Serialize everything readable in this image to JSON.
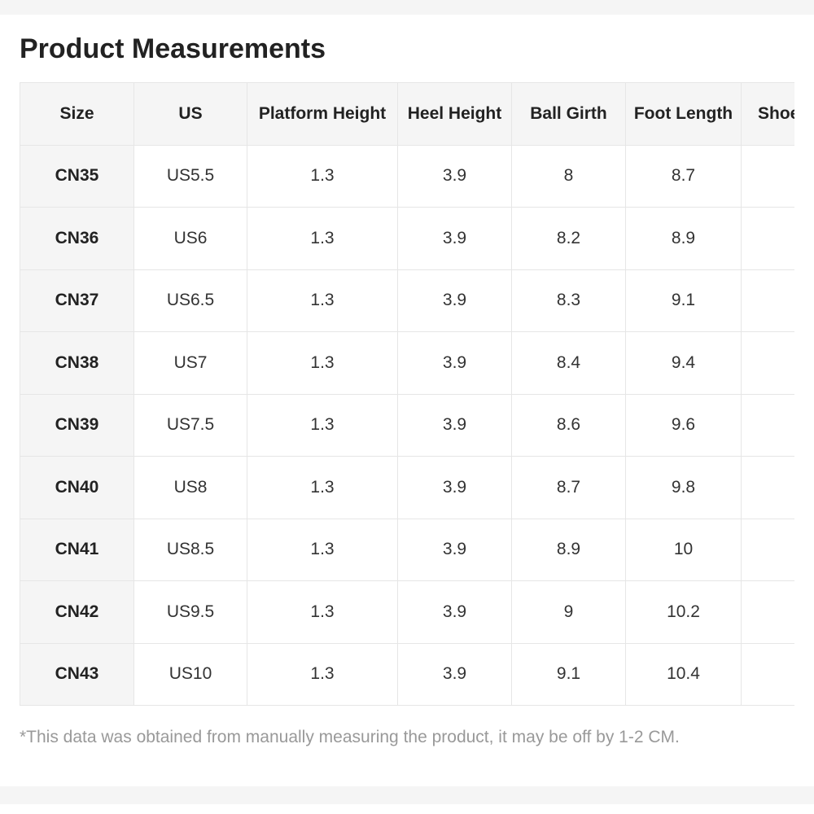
{
  "title": "Product Measurements",
  "table": {
    "header": [
      "Size",
      "US",
      "Platform Height",
      "Heel Height",
      "Ball Girth",
      "Foot Length",
      "Shoes"
    ],
    "rows": [
      [
        "CN35",
        "US5.5",
        "1.3",
        "3.9",
        "8",
        "8.7"
      ],
      [
        "CN36",
        "US6",
        "1.3",
        "3.9",
        "8.2",
        "8.9"
      ],
      [
        "CN37",
        "US6.5",
        "1.3",
        "3.9",
        "8.3",
        "9.1"
      ],
      [
        "CN38",
        "US7",
        "1.3",
        "3.9",
        "8.4",
        "9.4"
      ],
      [
        "CN39",
        "US7.5",
        "1.3",
        "3.9",
        "8.6",
        "9.6"
      ],
      [
        "CN40",
        "US8",
        "1.3",
        "3.9",
        "8.7",
        "9.8"
      ],
      [
        "CN41",
        "US8.5",
        "1.3",
        "3.9",
        "8.9",
        "10"
      ],
      [
        "CN42",
        "US9.5",
        "1.3",
        "3.9",
        "9",
        "10.2"
      ],
      [
        "CN43",
        "US10",
        "1.3",
        "3.9",
        "9.1",
        "10.4"
      ]
    ]
  },
  "note": "*This data was obtained from manually measuring the product, it may be off by 1-2 CM."
}
